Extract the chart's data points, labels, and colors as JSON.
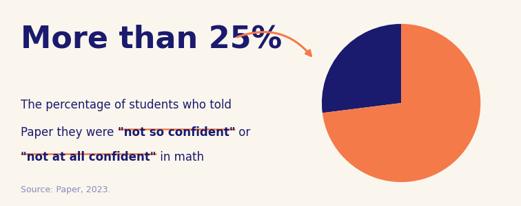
{
  "background_color": "#faf6ee",
  "title": "More than 25%",
  "title_color": "#1a1a6e",
  "title_fontsize": 32,
  "body_line1": "The percentage of students who told",
  "body_color": "#1a1a6e",
  "body_fontsize": 12,
  "source_text": "Source: Paper, 2023.",
  "source_color": "#8888bb",
  "source_fontsize": 9,
  "pie_values": [
    27,
    73
  ],
  "pie_colors": [
    "#1a1a6e",
    "#f47a4a"
  ],
  "pie_startangle": 90,
  "orange_color": "#f47a4a",
  "navy_color": "#1a1a6e",
  "line2_parts": [
    {
      "text": "Paper they were ",
      "bold": false
    },
    {
      "text": "\"not so confident\"",
      "bold": true
    },
    {
      "text": " or",
      "bold": false
    }
  ],
  "line3_parts": [
    {
      "text": "\"not at all confident\"",
      "bold": true
    },
    {
      "text": " in math",
      "bold": false
    }
  ]
}
